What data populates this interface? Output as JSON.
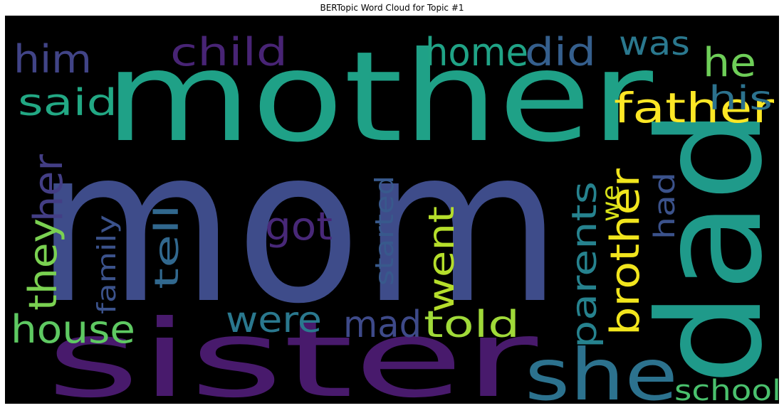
{
  "chart_data": {
    "type": "wordcloud",
    "title": "BERTopic Word Cloud for Topic #1",
    "background": "#000000",
    "words": [
      {
        "text": "mom",
        "color": "#3e4c8a"
      },
      {
        "text": "mother",
        "color": "#1fa187"
      },
      {
        "text": "sister",
        "color": "#481a6c"
      },
      {
        "text": "dad",
        "color": "#1f9a8a"
      },
      {
        "text": "she",
        "color": "#2c728e"
      },
      {
        "text": "father",
        "color": "#fde725"
      },
      {
        "text": "brother",
        "color": "#f1e51d"
      },
      {
        "text": "home",
        "color": "#20a386"
      },
      {
        "text": "did",
        "color": "#355f8d"
      },
      {
        "text": "child",
        "color": "#482475"
      },
      {
        "text": "him",
        "color": "#414487"
      },
      {
        "text": "was",
        "color": "#2a788e"
      },
      {
        "text": "he",
        "color": "#6ece58"
      },
      {
        "text": "said",
        "color": "#22a884"
      },
      {
        "text": "his",
        "color": "#2c728e"
      },
      {
        "text": "her",
        "color": "#433e85"
      },
      {
        "text": "they",
        "color": "#7ad151"
      },
      {
        "text": "house",
        "color": "#5ec962"
      },
      {
        "text": "family",
        "color": "#3b528b"
      },
      {
        "text": "tell",
        "color": "#31688e"
      },
      {
        "text": "got",
        "color": "#482878"
      },
      {
        "text": "were",
        "color": "#2a788e"
      },
      {
        "text": "mad",
        "color": "#3e4a89"
      },
      {
        "text": "started",
        "color": "#38598c"
      },
      {
        "text": "went",
        "color": "#b5de2b"
      },
      {
        "text": "told",
        "color": "#a0da39"
      },
      {
        "text": "parents",
        "color": "#26828e"
      },
      {
        "text": "we",
        "color": "#d8e219"
      },
      {
        "text": "had",
        "color": "#3b528b"
      },
      {
        "text": "school",
        "color": "#4ac16d"
      }
    ]
  }
}
